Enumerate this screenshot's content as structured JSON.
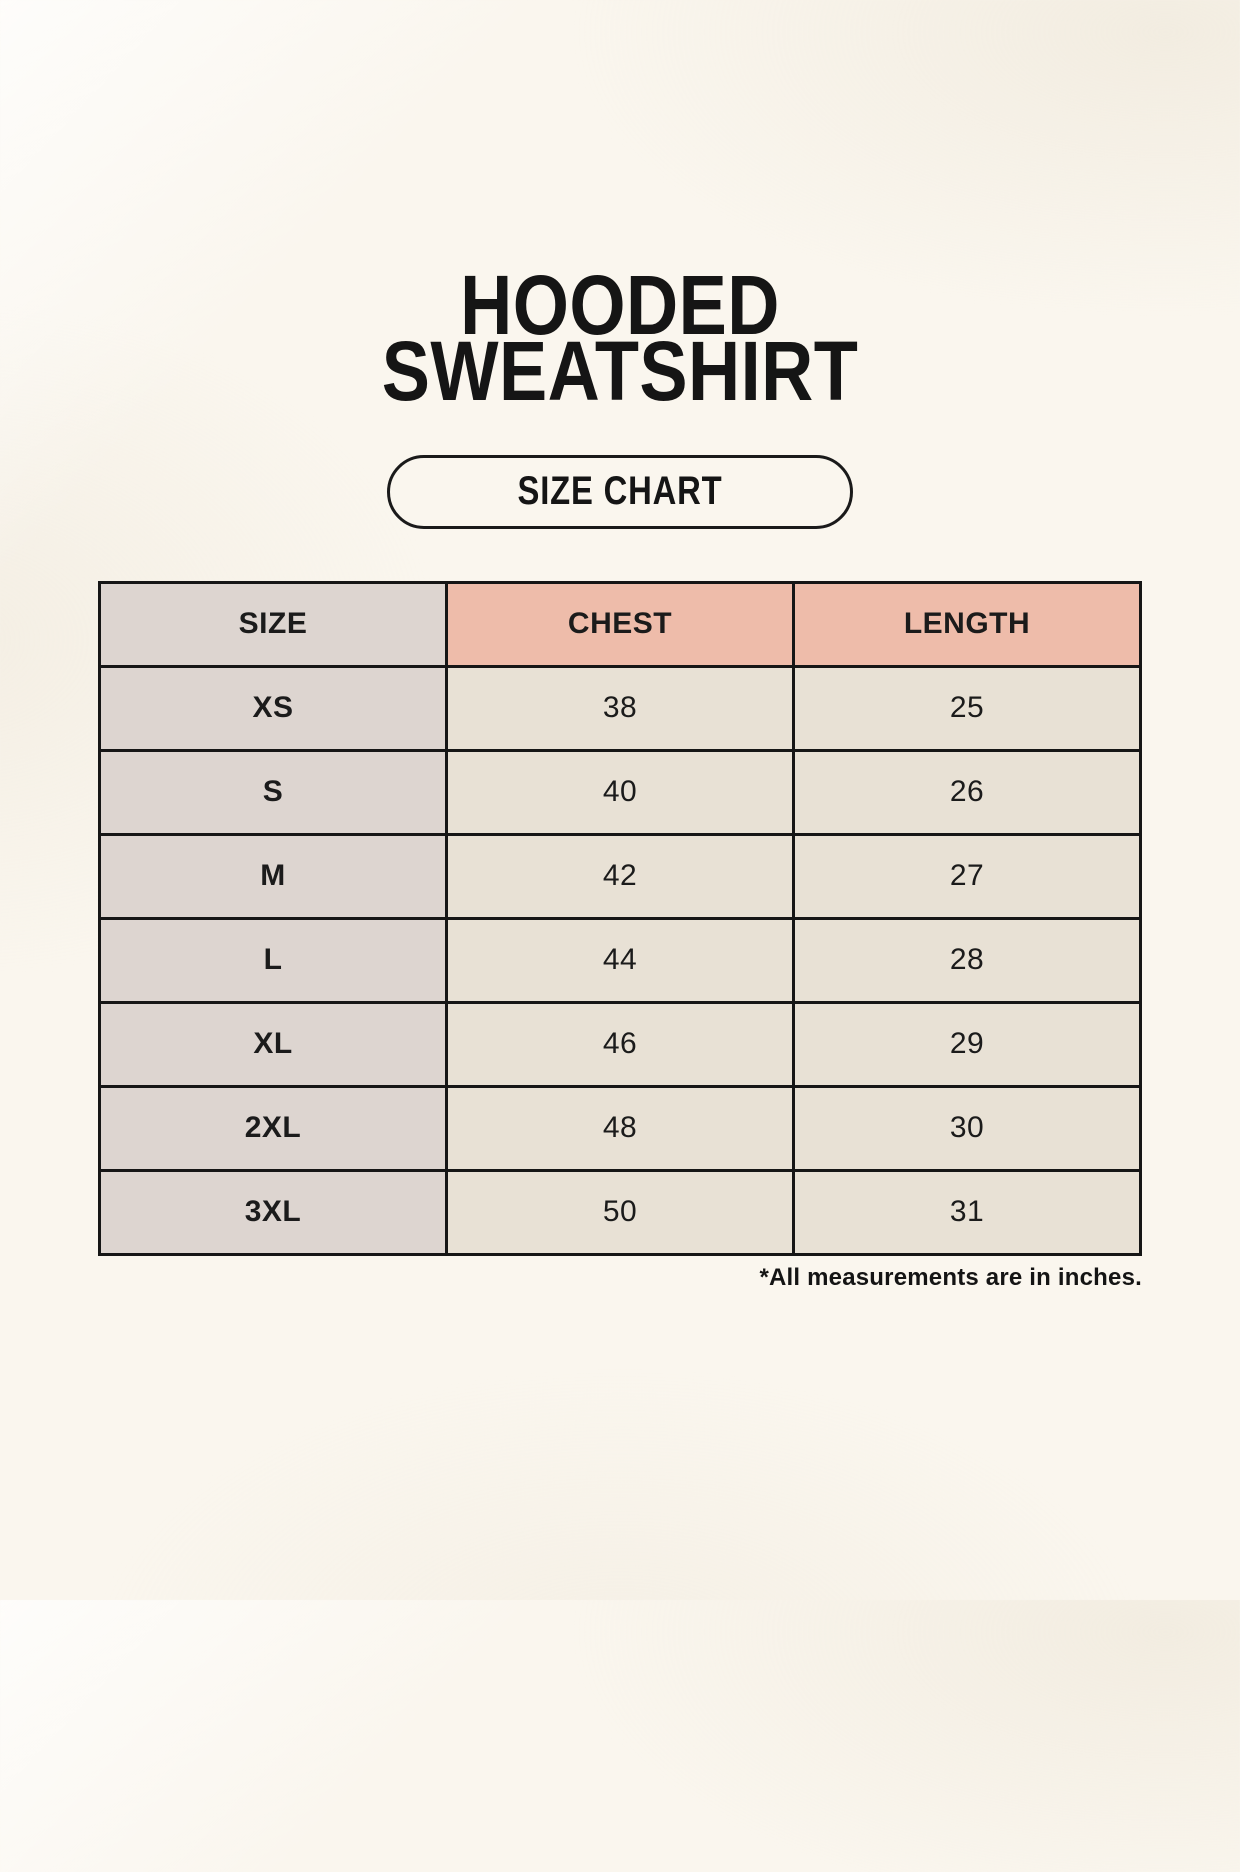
{
  "page": {
    "title_line1": "HOODED",
    "title_line2": "SWEATSHIRT",
    "button_label": "SIZE CHART",
    "footnote": "*All measurements are in inches."
  },
  "colors": {
    "page_background": "#faf6ee",
    "header_accent": "#eebcaa",
    "size_column_background": "#ddd5d0",
    "cell_background": "#e8e1d5",
    "table_border": "#161616",
    "text": "#1b1b1b"
  },
  "chart_data": {
    "type": "table",
    "title": "HOODED SWEATSHIRT",
    "subtitle": "SIZE CHART",
    "columns": [
      "SIZE",
      "CHEST",
      "LENGTH"
    ],
    "rows": [
      [
        "XS",
        "38",
        "25"
      ],
      [
        "S",
        "40",
        "26"
      ],
      [
        "M",
        "42",
        "27"
      ],
      [
        "L",
        "44",
        "28"
      ],
      [
        "XL",
        "46",
        "29"
      ],
      [
        "2XL",
        "48",
        "30"
      ],
      [
        "3XL",
        "50",
        "31"
      ]
    ],
    "units": "inches",
    "note": "*All measurements are in inches."
  }
}
